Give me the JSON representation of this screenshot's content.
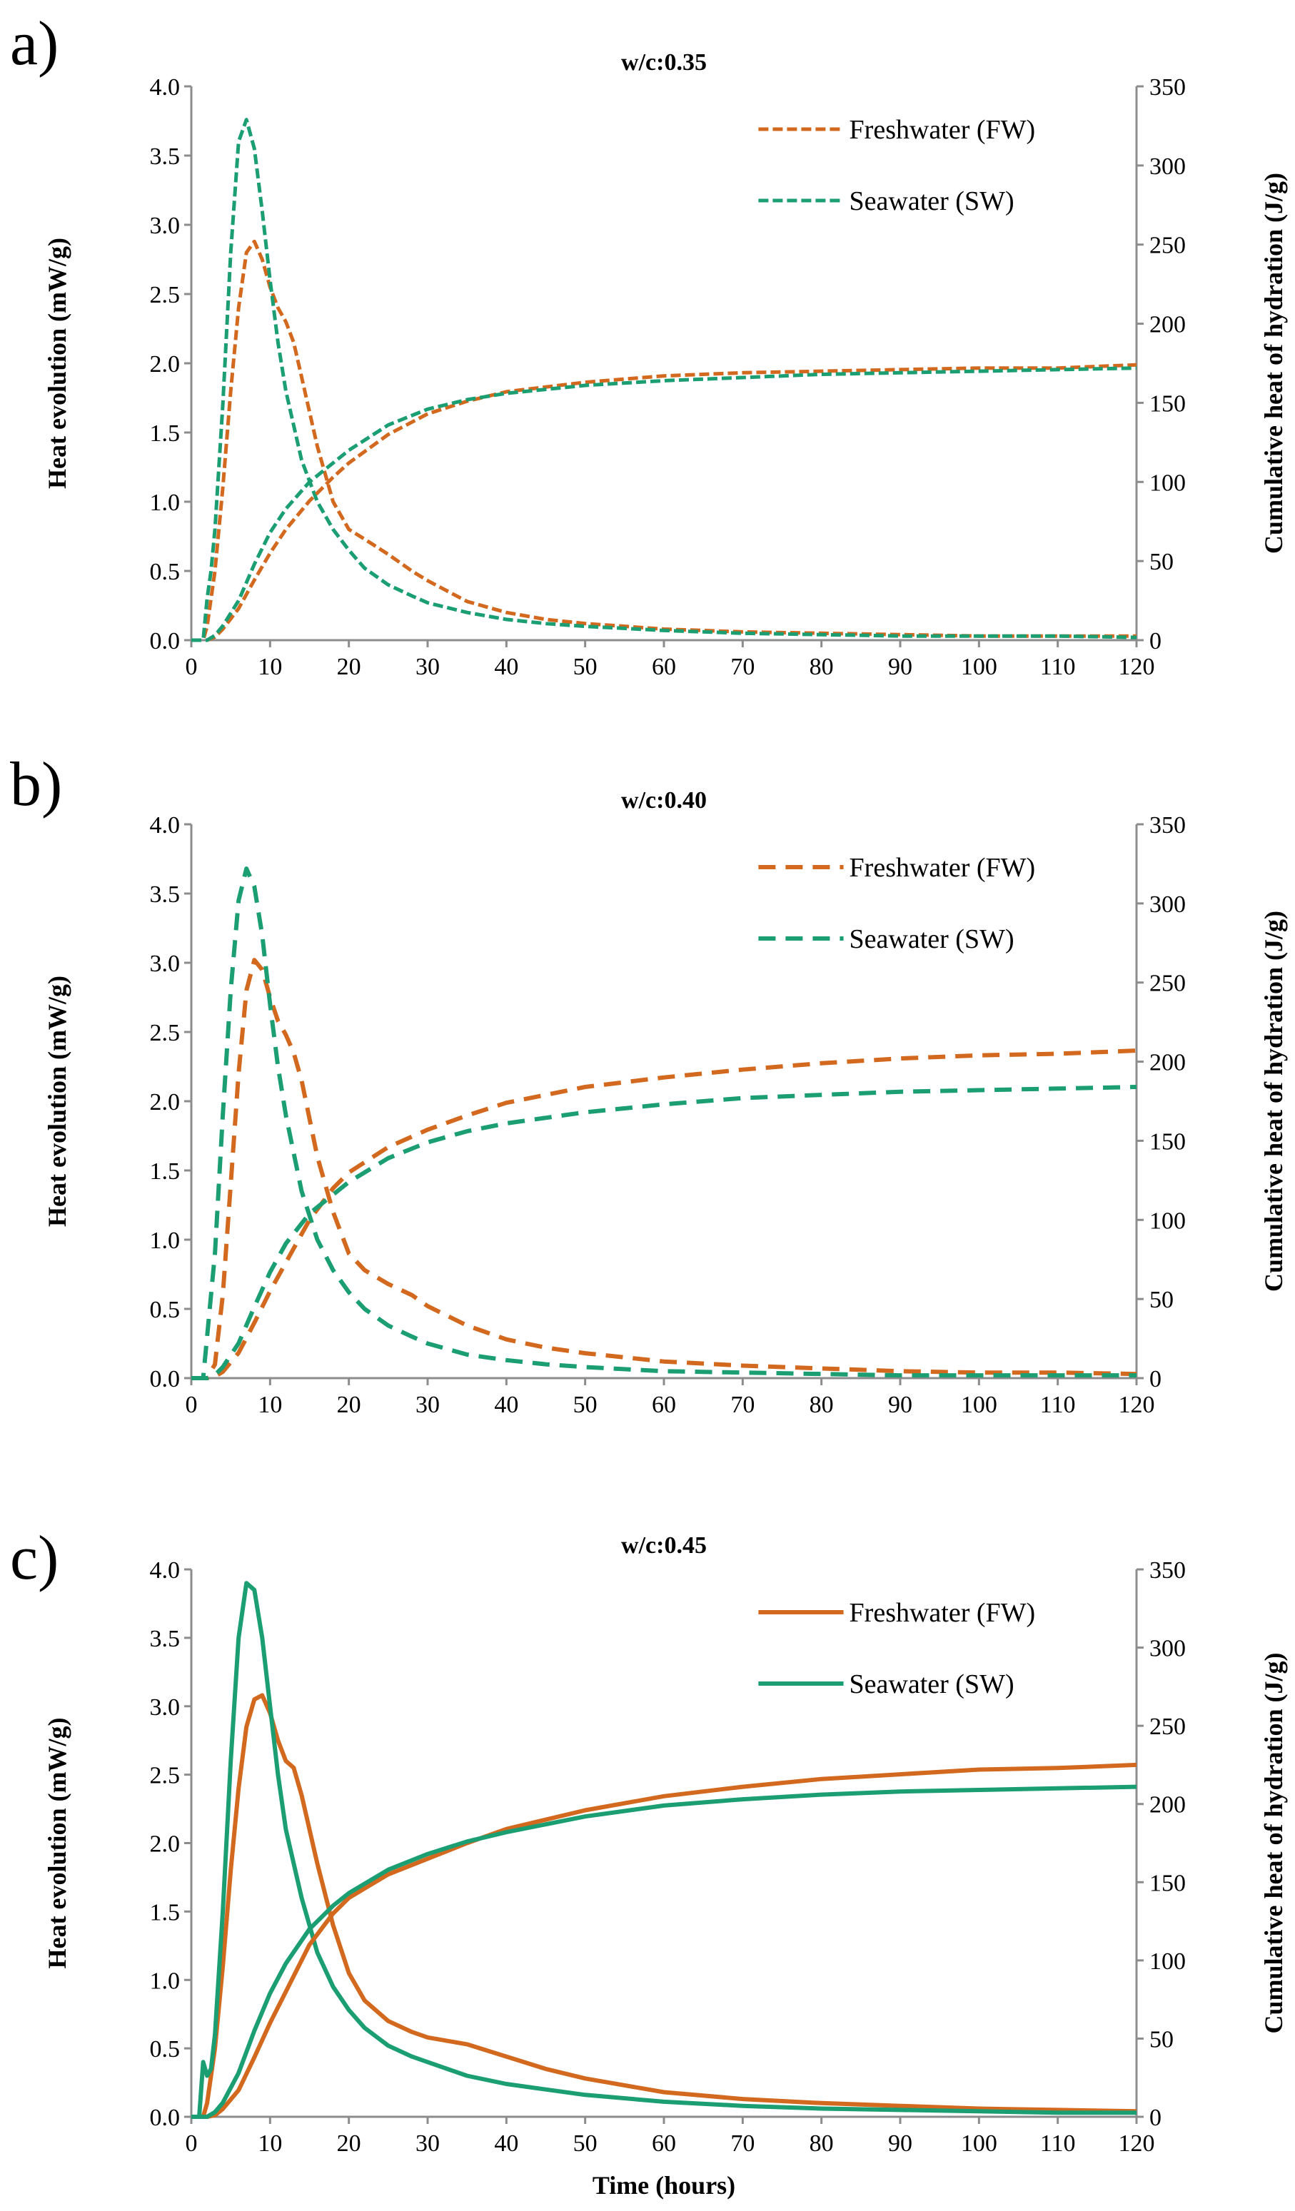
{
  "colors": {
    "fw": "#D2691E",
    "sw": "#1A9E72"
  },
  "charts": [
    {
      "panel_label": "a)",
      "title": "w/c:0.35",
      "xlabel": "",
      "y1label": "Heat evolution (mW/g)",
      "y2label": "Cumulative heat of hydration (J/g)",
      "xticks": [
        "0",
        "10",
        "20",
        "30",
        "40",
        "50",
        "60",
        "70",
        "80",
        "90",
        "100",
        "110",
        "120"
      ],
      "y1ticks": [
        "0.0",
        "0.5",
        "1.0",
        "1.5",
        "2.0",
        "2.5",
        "3.0",
        "3.5",
        "4.0"
      ],
      "y2ticks": [
        "0",
        "50",
        "100",
        "150",
        "200",
        "250",
        "300",
        "350"
      ],
      "legend": [
        "Freshwater (FW)",
        "Seawater (SW)"
      ],
      "line_style": "dotted"
    },
    {
      "panel_label": "b)",
      "title": "w/c:0.40",
      "xlabel": "",
      "y1label": "Heat evolution (mW/g)",
      "y2label": "Cumulative heat of hydration (J/g)",
      "xticks": [
        "0",
        "10",
        "20",
        "30",
        "40",
        "50",
        "60",
        "70",
        "80",
        "90",
        "100",
        "110",
        "120"
      ],
      "y1ticks": [
        "0.0",
        "0.5",
        "1.0",
        "1.5",
        "2.0",
        "2.5",
        "3.0",
        "3.5",
        "4.0"
      ],
      "y2ticks": [
        "0",
        "50",
        "100",
        "150",
        "200",
        "250",
        "300",
        "350"
      ],
      "legend": [
        "Freshwater (FW)",
        "Seawater (SW)"
      ],
      "line_style": "dashed"
    },
    {
      "panel_label": "c)",
      "title": "w/c:0.45",
      "xlabel": "Time (hours)",
      "y1label": "Heat evolution (mW/g)",
      "y2label": "Cumulative heat of hydration (J/g)",
      "xticks": [
        "0",
        "10",
        "20",
        "30",
        "40",
        "50",
        "60",
        "70",
        "80",
        "90",
        "100",
        "110",
        "120"
      ],
      "y1ticks": [
        "0.0",
        "0.5",
        "1.0",
        "1.5",
        "2.0",
        "2.5",
        "3.0",
        "3.5",
        "4.0"
      ],
      "y2ticks": [
        "0",
        "50",
        "100",
        "150",
        "200",
        "250",
        "300",
        "350"
      ],
      "legend": [
        "Freshwater (FW)",
        "Seawater (SW)"
      ],
      "line_style": "solid"
    }
  ],
  "chart_data": [
    {
      "type": "line",
      "title": "w/c:0.35",
      "xlabel": "",
      "ylabel": "Heat evolution (mW/g)",
      "y2label": "Cumulative heat of hydration (J/g)",
      "xlim": [
        0,
        120
      ],
      "ylim": [
        0,
        4
      ],
      "y2lim": [
        0,
        350
      ],
      "legend_position": "top-right",
      "series": [
        {
          "name": "Freshwater (FW)",
          "axis": "left",
          "line": "dotted",
          "x": [
            0,
            1.5,
            2,
            3,
            4,
            5,
            6,
            7,
            8,
            9,
            10,
            11,
            12,
            13,
            14,
            16,
            18,
            20,
            22,
            25,
            28,
            30,
            35,
            40,
            45,
            50,
            60,
            70,
            80,
            90,
            100,
            110,
            120
          ],
          "y": [
            0,
            0,
            0.1,
            0.5,
            1.1,
            1.8,
            2.4,
            2.8,
            2.88,
            2.75,
            2.55,
            2.4,
            2.3,
            2.15,
            1.9,
            1.4,
            1.0,
            0.8,
            0.73,
            0.62,
            0.5,
            0.43,
            0.28,
            0.2,
            0.15,
            0.12,
            0.08,
            0.06,
            0.05,
            0.04,
            0.03,
            0.03,
            0.03
          ]
        },
        {
          "name": "Seawater (SW)",
          "axis": "left",
          "line": "dotted",
          "x": [
            0,
            1.5,
            2,
            2.5,
            3,
            4,
            5,
            6,
            7,
            8,
            9,
            10,
            11,
            12,
            14,
            16,
            18,
            20,
            22,
            25,
            28,
            30,
            35,
            40,
            45,
            50,
            60,
            70,
            80,
            90,
            100,
            110,
            120
          ],
          "y": [
            0,
            0,
            0.3,
            0.5,
            0.8,
            1.7,
            2.8,
            3.6,
            3.76,
            3.55,
            3.1,
            2.6,
            2.15,
            1.8,
            1.3,
            1.0,
            0.8,
            0.65,
            0.52,
            0.4,
            0.32,
            0.27,
            0.2,
            0.15,
            0.12,
            0.1,
            0.07,
            0.05,
            0.04,
            0.03,
            0.03,
            0.03,
            0.02
          ]
        },
        {
          "name": "Freshwater (FW) cumulative",
          "axis": "right",
          "line": "dotted",
          "x": [
            0,
            2,
            3,
            4,
            6,
            8,
            10,
            12,
            15,
            18,
            20,
            25,
            30,
            35,
            40,
            50,
            60,
            70,
            80,
            90,
            100,
            110,
            120
          ],
          "y": [
            0,
            0,
            2,
            7,
            20,
            38,
            55,
            70,
            88,
            103,
            112,
            130,
            143,
            151,
            157,
            163,
            167,
            169,
            170,
            171,
            172,
            172,
            174
          ]
        },
        {
          "name": "Seawater (SW) cumulative",
          "axis": "right",
          "line": "dotted",
          "x": [
            0,
            2,
            3,
            4,
            6,
            8,
            10,
            12,
            15,
            18,
            20,
            25,
            30,
            35,
            40,
            50,
            60,
            70,
            80,
            90,
            100,
            110,
            120
          ],
          "y": [
            0,
            0,
            3,
            9,
            25,
            48,
            68,
            83,
            100,
            112,
            120,
            136,
            146,
            152,
            156,
            161,
            164,
            166,
            168,
            169,
            170,
            171,
            172
          ]
        }
      ]
    },
    {
      "type": "line",
      "title": "w/c:0.40",
      "xlabel": "",
      "ylabel": "Heat evolution (mW/g)",
      "y2label": "Cumulative heat of hydration (J/g)",
      "xlim": [
        0,
        120
      ],
      "ylim": [
        0,
        4
      ],
      "y2lim": [
        0,
        350
      ],
      "legend_position": "top-right",
      "series": [
        {
          "name": "Freshwater (FW)",
          "axis": "left",
          "line": "dashed",
          "x": [
            0,
            2,
            3,
            4,
            5,
            6,
            7,
            8,
            9,
            10,
            11,
            12,
            13,
            14,
            16,
            18,
            20,
            22,
            25,
            28,
            30,
            35,
            40,
            45,
            50,
            60,
            70,
            80,
            90,
            100,
            110,
            120
          ],
          "y": [
            0,
            0,
            0.1,
            0.6,
            1.4,
            2.2,
            2.8,
            3.02,
            2.95,
            2.75,
            2.58,
            2.48,
            2.35,
            2.15,
            1.6,
            1.2,
            0.9,
            0.78,
            0.68,
            0.6,
            0.52,
            0.38,
            0.28,
            0.22,
            0.18,
            0.12,
            0.09,
            0.07,
            0.05,
            0.04,
            0.04,
            0.03
          ]
        },
        {
          "name": "Seawater (SW)",
          "axis": "left",
          "line": "dashed",
          "x": [
            0,
            1.5,
            2,
            3,
            4,
            5,
            6,
            7,
            8,
            9,
            10,
            11,
            12,
            14,
            16,
            18,
            20,
            22,
            25,
            28,
            30,
            35,
            40,
            45,
            50,
            60,
            70,
            80,
            90,
            100,
            110,
            120
          ],
          "y": [
            0,
            0,
            0.3,
            0.9,
            1.9,
            2.8,
            3.45,
            3.68,
            3.55,
            3.2,
            2.7,
            2.25,
            1.9,
            1.35,
            1.0,
            0.78,
            0.62,
            0.5,
            0.38,
            0.3,
            0.25,
            0.17,
            0.13,
            0.1,
            0.08,
            0.05,
            0.04,
            0.03,
            0.02,
            0.02,
            0.02,
            0.02
          ]
        },
        {
          "name": "Freshwater (FW) cumulative",
          "axis": "right",
          "line": "dashed",
          "x": [
            0,
            2,
            3,
            4,
            6,
            8,
            10,
            12,
            15,
            18,
            20,
            25,
            30,
            35,
            40,
            50,
            60,
            70,
            80,
            90,
            100,
            110,
            120
          ],
          "y": [
            0,
            0,
            1,
            4,
            16,
            35,
            55,
            73,
            100,
            120,
            130,
            146,
            157,
            166,
            174,
            184,
            190,
            195,
            199,
            202,
            204,
            205,
            207
          ]
        },
        {
          "name": "Seawater (SW) cumulative",
          "axis": "right",
          "line": "dashed",
          "x": [
            0,
            2,
            3,
            4,
            6,
            8,
            10,
            12,
            15,
            18,
            20,
            25,
            30,
            35,
            40,
            50,
            60,
            70,
            80,
            90,
            100,
            110,
            120
          ],
          "y": [
            0,
            0,
            2,
            7,
            22,
            45,
            67,
            85,
            104,
            116,
            124,
            139,
            149,
            156,
            161,
            168,
            173,
            177,
            179,
            181,
            182,
            183,
            184
          ]
        }
      ]
    },
    {
      "type": "line",
      "title": "w/c:0.45",
      "xlabel": "Time (hours)",
      "ylabel": "Heat evolution (mW/g)",
      "y2label": "Cumulative heat of hydration (J/g)",
      "xlim": [
        0,
        120
      ],
      "ylim": [
        0,
        4
      ],
      "y2lim": [
        0,
        350
      ],
      "legend_position": "top-right",
      "series": [
        {
          "name": "Freshwater (FW)",
          "axis": "left",
          "line": "solid",
          "x": [
            0,
            1.5,
            2,
            3,
            4,
            5,
            6,
            7,
            8,
            9,
            10,
            11,
            12,
            13,
            14,
            16,
            18,
            20,
            22,
            25,
            28,
            30,
            35,
            40,
            45,
            50,
            60,
            70,
            80,
            90,
            100,
            110,
            120
          ],
          "y": [
            0,
            0,
            0.1,
            0.5,
            1.1,
            1.8,
            2.4,
            2.85,
            3.05,
            3.08,
            2.95,
            2.75,
            2.6,
            2.55,
            2.35,
            1.85,
            1.4,
            1.05,
            0.85,
            0.7,
            0.62,
            0.58,
            0.53,
            0.44,
            0.35,
            0.28,
            0.18,
            0.13,
            0.1,
            0.08,
            0.06,
            0.05,
            0.04
          ]
        },
        {
          "name": "Seawater (SW)",
          "axis": "left",
          "line": "solid",
          "x": [
            0,
            1,
            1.5,
            2,
            2.5,
            3,
            4,
            5,
            6,
            7,
            8,
            9,
            10,
            11,
            12,
            14,
            16,
            18,
            20,
            22,
            25,
            28,
            30,
            35,
            40,
            45,
            50,
            60,
            70,
            80,
            90,
            100,
            110,
            120
          ],
          "y": [
            0,
            0,
            0.4,
            0.3,
            0.35,
            0.6,
            1.5,
            2.6,
            3.5,
            3.9,
            3.85,
            3.5,
            3.0,
            2.5,
            2.1,
            1.6,
            1.2,
            0.95,
            0.78,
            0.65,
            0.52,
            0.44,
            0.4,
            0.3,
            0.24,
            0.2,
            0.16,
            0.11,
            0.08,
            0.06,
            0.05,
            0.04,
            0.03,
            0.03
          ]
        },
        {
          "name": "Freshwater (FW) cumulative",
          "axis": "right",
          "line": "solid",
          "x": [
            0,
            2,
            3,
            4,
            6,
            8,
            10,
            12,
            15,
            18,
            20,
            25,
            30,
            35,
            40,
            50,
            60,
            70,
            80,
            90,
            100,
            110,
            120
          ],
          "y": [
            0,
            0,
            1,
            5,
            17,
            38,
            60,
            80,
            110,
            130,
            140,
            155,
            165,
            175,
            184,
            196,
            205,
            211,
            216,
            219,
            222,
            223,
            225
          ]
        },
        {
          "name": "Seawater (SW) cumulative",
          "axis": "right",
          "line": "solid",
          "x": [
            0,
            2,
            3,
            4,
            6,
            8,
            10,
            12,
            15,
            18,
            20,
            25,
            30,
            35,
            40,
            50,
            60,
            70,
            80,
            90,
            100,
            110,
            120
          ],
          "y": [
            0,
            0,
            3,
            9,
            28,
            55,
            79,
            98,
            120,
            135,
            143,
            158,
            168,
            176,
            182,
            192,
            199,
            203,
            206,
            208,
            209,
            210,
            211
          ]
        }
      ]
    }
  ]
}
